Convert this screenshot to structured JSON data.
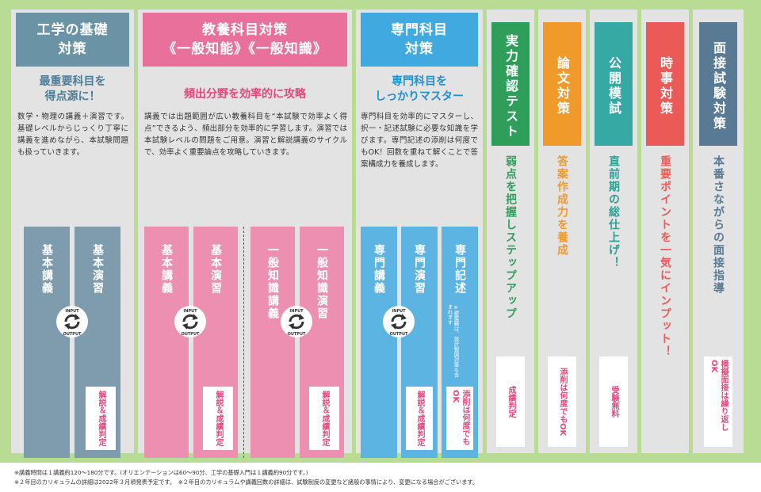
{
  "colors": {
    "frame": "#b9dc95",
    "panel": "#e3e3e3",
    "blue": "#6b93a6",
    "pink": "#e8709a",
    "sky": "#3fa9e0",
    "green": "#2f9e5a",
    "orange": "#f09a2c",
    "teal": "#36a9a5",
    "red": "#ec5a57",
    "slate": "#587a95",
    "accent": "#e5477c"
  },
  "cycle_icon": {
    "name": "input-output-cycle-icon",
    "input": "INPUT",
    "output": "OUTPUT"
  },
  "engineering": {
    "title_l1": "工学の基礎",
    "title_l2": "対策",
    "sub_l1": "最重要科目を",
    "sub_l2": "得点源に！",
    "desc": "数学・物理の講義＋演習です。基礎レベルからじっくり丁寧に講義を進めながら、本試験問題も扱っていきます。",
    "cols": [
      {
        "label": "基本講義"
      },
      {
        "label": "基本演習",
        "box": "解説＆成績判定"
      }
    ]
  },
  "liberal": {
    "title_l1": "教養科目対策",
    "title_l2": "《一般知能》《一般知識》",
    "sub": "頻出分野を効率的に攻略",
    "desc": "講義では出題範囲が広い教養科目を“本試験で効率よく得点”できるよう、頻出部分を効率的に学習します。演習では本試験レベルの問題をご用意。演習と解説講義のサイクルで、効率よく重要論点を攻略していきます。",
    "cols": [
      {
        "label": "基本講義"
      },
      {
        "label": "基本演習",
        "box": "解説＆成績判定"
      },
      {
        "label": "一般知識講義"
      },
      {
        "label": "一般知識演習",
        "box": "解説＆成績判定"
      }
    ]
  },
  "specialty": {
    "title_l1": "専門科目",
    "title_l2": "対策",
    "sub_l1": "専門科目を",
    "sub_l2": "しっかりマスター",
    "desc": "専門科目を効率的にマスターし、択一・記述試験に必要な知識を学びます。専門記述の添削は何度でもOK！回数を重ねて解くことで答案構成力を養成します。",
    "cols": [
      {
        "label": "専門講義"
      },
      {
        "label": "専門演習",
        "box": "解説＆成績判定"
      },
      {
        "label": "専門記述",
        "note": "※建築職は、設計製図対策も含まれます",
        "box": "添削は何度でもOK"
      }
    ]
  },
  "extras": [
    {
      "title": "実力確認テスト",
      "sub": "弱点を把握しステップアップ",
      "box": "成績判定"
    },
    {
      "title": "論文対策",
      "sub": "答案作成力を養成",
      "box": "添削は何度でもOK"
    },
    {
      "title": "公開模試",
      "sub": "直前期の総仕上げ！",
      "box": "受験無料"
    },
    {
      "title": "時事対策",
      "sub": "重要ポイントを一気にインプット！"
    },
    {
      "title": "面接試験対策",
      "sub": "本番さながらの面接指導",
      "box": "模擬面接は繰り返しOK"
    }
  ],
  "footer": {
    "line1": "※講義時間は１講義約120～180分です。(オリエンテーションは60～90分、工学の基礎入門は１講義約90分です。)",
    "line2": "※２年目のカリキュラムの詳細は2022年３月頃発表予定です。　※２年目のカリキュラムや講義回数の詳細は、試験制度の変更など諸般の事情により、変更になる場合がございます。"
  }
}
